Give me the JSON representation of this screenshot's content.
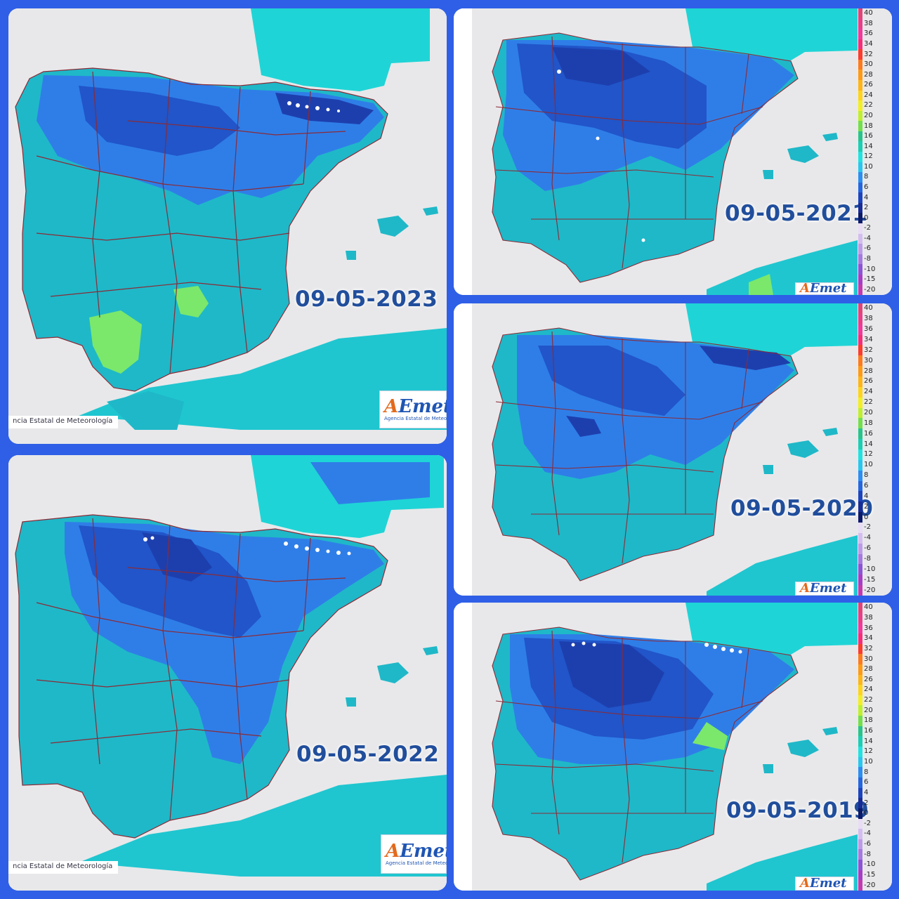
{
  "panels": [
    {
      "id": "p2023",
      "date": "09-05-2023",
      "credit": "ncia Estatal de Meteorología",
      "logo_subtitle": "Agencia Estatal de Meteorología",
      "has_legend": false
    },
    {
      "id": "p2022",
      "date": "09-05-2022",
      "credit": "ncia Estatal de Meteorología",
      "logo_subtitle": "Agencia Estatal de Meteorología",
      "has_legend": false
    },
    {
      "id": "p2021",
      "date": "09-05-2021",
      "credit": "",
      "logo_subtitle": "",
      "has_legend": true
    },
    {
      "id": "p2020",
      "date": "09-05-2020",
      "credit": "",
      "logo_subtitle": "",
      "has_legend": true
    },
    {
      "id": "p2019",
      "date": "09-05-2019",
      "credit": "",
      "logo_subtitle": "",
      "has_legend": true
    }
  ],
  "logo": {
    "text_a": "A",
    "text_rest": "Emet"
  },
  "legend": {
    "labels": [
      "40",
      "38",
      "36",
      "34",
      "32",
      "30",
      "28",
      "26",
      "24",
      "22",
      "20",
      "18",
      "16",
      "14",
      "12",
      "10",
      "8",
      "6",
      "4",
      "2",
      "0",
      "-2",
      "-4",
      "-6",
      "-8",
      "-10",
      "-15",
      "-20"
    ],
    "colors": [
      "#e0457a",
      "#e83f8a",
      "#f03a9c",
      "#f52e7a",
      "#ff3b2b",
      "#ff7a1a",
      "#ff9a12",
      "#ffb514",
      "#ffd418",
      "#f3ef1f",
      "#bff02a",
      "#72e04a",
      "#27c48c",
      "#19cfb4",
      "#1fe3e0",
      "#27c7f0",
      "#2a8ff0",
      "#2466e0",
      "#1c44bf",
      "#172c96",
      "#0c1a6a",
      "#e8dcf6",
      "#d3bdf0",
      "#bc9ce8",
      "#a57ae0",
      "#8c54d6",
      "#a63ec6",
      "#c23ab0"
    ]
  },
  "colors": {
    "sea": "#e8e8ea",
    "land_base": "#1fb8c8",
    "cool": "#2f7ee8",
    "cold": "#2155c9",
    "colder": "#1d3fae",
    "warm": "#7be86b",
    "border": "#8b2a36",
    "frame": "#2f5fe6"
  }
}
